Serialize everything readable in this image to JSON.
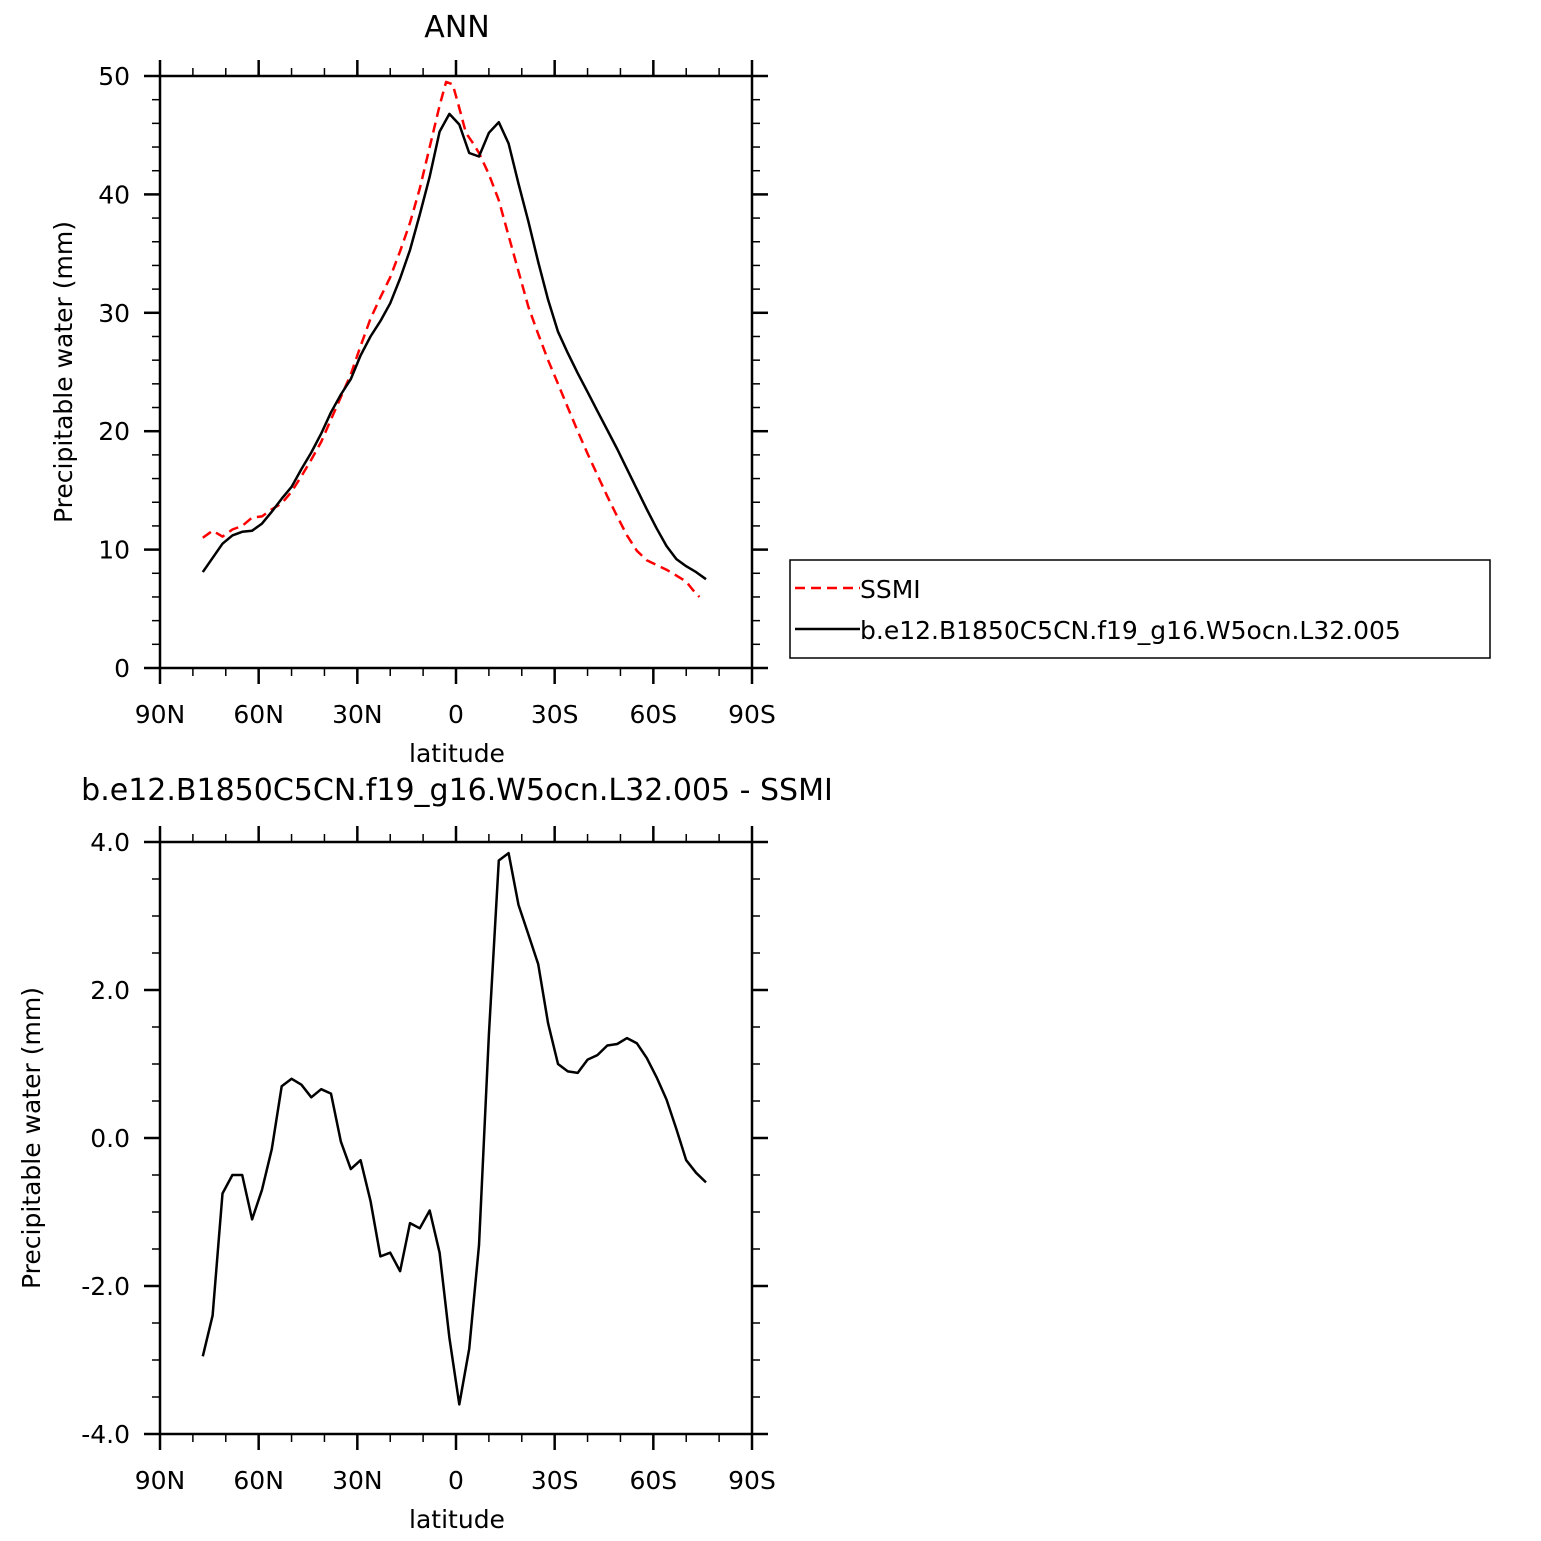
{
  "chart_data": [
    {
      "type": "line",
      "title": "ANN",
      "xlabel": "latitude",
      "ylabel": "Precipitable water (mm)",
      "xlim": [
        90,
        -90
      ],
      "ylim": [
        0,
        50
      ],
      "x_ticks": [
        90,
        60,
        30,
        0,
        -30,
        -60,
        -90
      ],
      "x_tick_labels": [
        "90N",
        "60N",
        "30N",
        "0",
        "30S",
        "60S",
        "90S"
      ],
      "y_ticks": [
        0,
        10,
        20,
        30,
        40,
        50
      ],
      "y_tick_labels": [
        "0",
        "10",
        "20",
        "30",
        "40",
        "50"
      ],
      "legend_position": "right",
      "series": [
        {
          "name": "SSMI",
          "color": "#ff0000",
          "dash": "dashed",
          "points": [
            [
              77,
              11.0
            ],
            [
              74,
              11.6
            ],
            [
              71,
              11.1
            ],
            [
              68,
              11.7
            ],
            [
              65,
              12.0
            ],
            [
              62,
              12.7
            ],
            [
              59,
              12.8
            ],
            [
              56,
              13.4
            ],
            [
              53,
              13.9
            ],
            [
              50,
              14.9
            ],
            [
              47,
              16.2
            ],
            [
              44,
              17.6
            ],
            [
              41,
              19.1
            ],
            [
              38,
              21.0
            ],
            [
              35,
              22.9
            ],
            [
              32,
              24.8
            ],
            [
              29,
              27.2
            ],
            [
              26,
              29.5
            ],
            [
              23,
              31.3
            ],
            [
              20,
              33.0
            ],
            [
              17,
              35.2
            ],
            [
              14,
              37.6
            ],
            [
              11,
              40.5
            ],
            [
              8,
              44.0
            ],
            [
              5,
              47.5
            ],
            [
              3,
              49.5
            ],
            [
              1,
              49.3
            ],
            [
              -1,
              47.3
            ],
            [
              -3,
              45.2
            ],
            [
              -5,
              44.4
            ],
            [
              -7,
              43.5
            ],
            [
              -10,
              41.7
            ],
            [
              -13,
              39.5
            ],
            [
              -16,
              36.5
            ],
            [
              -19,
              33.5
            ],
            [
              -22,
              30.5
            ],
            [
              -25,
              28.2
            ],
            [
              -28,
              26.0
            ],
            [
              -31,
              24.0
            ],
            [
              -34,
              22.0
            ],
            [
              -37,
              20.0
            ],
            [
              -40,
              18.1
            ],
            [
              -43,
              16.3
            ],
            [
              -46,
              14.5
            ],
            [
              -49,
              12.8
            ],
            [
              -52,
              11.2
            ],
            [
              -55,
              9.9
            ],
            [
              -58,
              9.1
            ],
            [
              -61,
              8.7
            ],
            [
              -64,
              8.3
            ],
            [
              -67,
              7.8
            ],
            [
              -70,
              7.3
            ],
            [
              -72,
              6.6
            ],
            [
              -74,
              6.0
            ]
          ]
        },
        {
          "name": "b.e12.B1850C5CN.f19_g16.W5ocn.L32.005",
          "color": "#000000",
          "dash": "solid",
          "points": [
            [
              77,
              8.1
            ],
            [
              74,
              9.3
            ],
            [
              71,
              10.5
            ],
            [
              68,
              11.2
            ],
            [
              65,
              11.5
            ],
            [
              62,
              11.6
            ],
            [
              59,
              12.2
            ],
            [
              56,
              13.2
            ],
            [
              53,
              14.3
            ],
            [
              50,
              15.3
            ],
            [
              47,
              16.8
            ],
            [
              44,
              18.2
            ],
            [
              41,
              19.8
            ],
            [
              38,
              21.6
            ],
            [
              35,
              23.1
            ],
            [
              32,
              24.4
            ],
            [
              29,
              26.4
            ],
            [
              26,
              28.0
            ],
            [
              23,
              29.3
            ],
            [
              20,
              30.8
            ],
            [
              17,
              32.9
            ],
            [
              14,
              35.3
            ],
            [
              11,
              38.3
            ],
            [
              8,
              41.5
            ],
            [
              5,
              45.3
            ],
            [
              2,
              46.8
            ],
            [
              -1,
              45.9
            ],
            [
              -4,
              43.5
            ],
            [
              -7,
              43.2
            ],
            [
              -10,
              45.2
            ],
            [
              -13,
              46.1
            ],
            [
              -16,
              44.3
            ],
            [
              -19,
              40.9
            ],
            [
              -22,
              37.7
            ],
            [
              -25,
              34.3
            ],
            [
              -28,
              31.1
            ],
            [
              -31,
              28.4
            ],
            [
              -34,
              26.6
            ],
            [
              -37,
              24.9
            ],
            [
              -40,
              23.3
            ],
            [
              -43,
              21.7
            ],
            [
              -46,
              20.1
            ],
            [
              -49,
              18.5
            ],
            [
              -52,
              16.8
            ],
            [
              -55,
              15.1
            ],
            [
              -58,
              13.4
            ],
            [
              -61,
              11.8
            ],
            [
              -64,
              10.3
            ],
            [
              -67,
              9.2
            ],
            [
              -70,
              8.6
            ],
            [
              -73,
              8.1
            ],
            [
              -76,
              7.5
            ]
          ]
        }
      ]
    },
    {
      "type": "line",
      "title": "b.e12.B1850C5CN.f19_g16.W5ocn.L32.005 - SSMI",
      "xlabel": "latitude",
      "ylabel": "Precipitable water (mm)",
      "xlim": [
        90,
        -90
      ],
      "ylim": [
        -4.0,
        4.0
      ],
      "x_ticks": [
        90,
        60,
        30,
        0,
        -30,
        -60,
        -90
      ],
      "x_tick_labels": [
        "90N",
        "60N",
        "30N",
        "0",
        "30S",
        "60S",
        "90S"
      ],
      "y_ticks": [
        -4.0,
        -2.0,
        0.0,
        2.0,
        4.0
      ],
      "y_tick_labels": [
        "-4.0",
        "-2.0",
        "0.0",
        "2.0",
        "4.0"
      ],
      "series": [
        {
          "color": "#000000",
          "dash": "solid",
          "points": [
            [
              77,
              -2.95
            ],
            [
              74,
              -2.4
            ],
            [
              71,
              -0.75
            ],
            [
              68,
              -0.5
            ],
            [
              65,
              -0.5
            ],
            [
              62,
              -1.1
            ],
            [
              59,
              -0.7
            ],
            [
              56,
              -0.15
            ],
            [
              53,
              0.7
            ],
            [
              50,
              0.8
            ],
            [
              47,
              0.72
            ],
            [
              44,
              0.55
            ],
            [
              41,
              0.66
            ],
            [
              38,
              0.6
            ],
            [
              35,
              -0.05
            ],
            [
              32,
              -0.42
            ],
            [
              29,
              -0.3
            ],
            [
              26,
              -0.85
            ],
            [
              23,
              -1.6
            ],
            [
              20,
              -1.55
            ],
            [
              17,
              -1.8
            ],
            [
              14,
              -1.15
            ],
            [
              11,
              -1.22
            ],
            [
              8,
              -0.98
            ],
            [
              5,
              -1.55
            ],
            [
              2,
              -2.7
            ],
            [
              -1,
              -3.6
            ],
            [
              -4,
              -2.85
            ],
            [
              -7,
              -1.45
            ],
            [
              -10,
              1.4
            ],
            [
              -13,
              3.75
            ],
            [
              -16,
              3.85
            ],
            [
              -19,
              3.15
            ],
            [
              -22,
              2.75
            ],
            [
              -25,
              2.35
            ],
            [
              -28,
              1.55
            ],
            [
              -31,
              1.0
            ],
            [
              -34,
              0.9
            ],
            [
              -37,
              0.88
            ],
            [
              -40,
              1.06
            ],
            [
              -43,
              1.12
            ],
            [
              -46,
              1.25
            ],
            [
              -49,
              1.27
            ],
            [
              -52,
              1.35
            ],
            [
              -55,
              1.28
            ],
            [
              -58,
              1.08
            ],
            [
              -61,
              0.82
            ],
            [
              -64,
              0.52
            ],
            [
              -67,
              0.12
            ],
            [
              -70,
              -0.3
            ],
            [
              -73,
              -0.47
            ],
            [
              -76,
              -0.6
            ]
          ]
        }
      ]
    }
  ]
}
